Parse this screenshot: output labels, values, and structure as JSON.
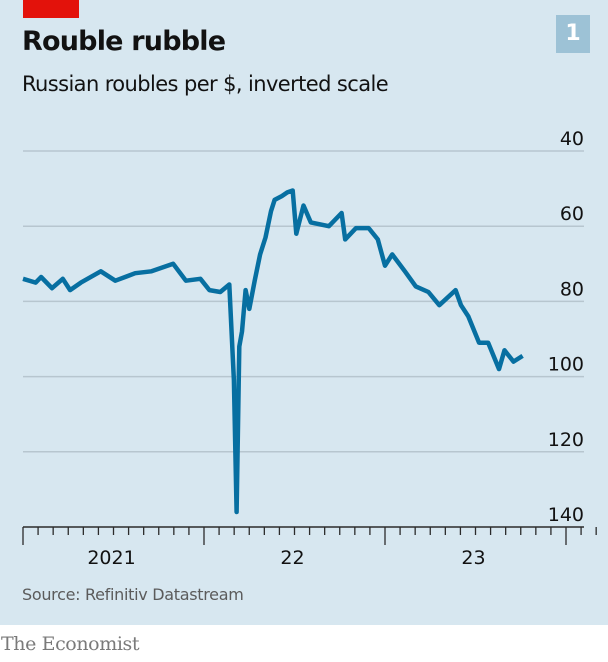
{
  "header": {
    "title": "Rouble rubble",
    "subtitle": "Russian roubles per $, inverted scale",
    "chart_number": "1"
  },
  "footer": {
    "source": "Source: Refinitiv Datastream",
    "brand": "The Economist"
  },
  "colors": {
    "background": "#d7e7f0",
    "line": "#076fa1",
    "gridline": "#b7c6cf",
    "red_tag": "#e3120b",
    "badge": "#9dc2d6"
  },
  "chart_data": {
    "type": "line",
    "title": "Rouble rubble",
    "subtitle": "Russian roubles per $, inverted scale",
    "xlabel": "",
    "ylabel": "Russian roubles per $",
    "y_inverted": true,
    "ylim": [
      40,
      140
    ],
    "yticks": [
      40,
      60,
      80,
      100,
      120,
      140
    ],
    "ytick_labels": [
      "40",
      "60",
      "80",
      "100",
      "120",
      "140"
    ],
    "xlim": [
      2021.0,
      2024.1
    ],
    "xtick_labels": [
      {
        "label": "2021",
        "year": 2021.5
      },
      {
        "label": "22",
        "year": 2022.5
      },
      {
        "label": "23",
        "year": 2023.5
      }
    ],
    "year_boundaries": [
      2021.0,
      2022.0,
      2023.0
    ],
    "minor_ticks": "monthly",
    "grid": true,
    "legend": "none",
    "series": [
      {
        "name": "Roubles per $",
        "x": [
          2021.0,
          2021.07,
          2021.1,
          2021.16,
          2021.22,
          2021.26,
          2021.32,
          2021.43,
          2021.51,
          2021.62,
          2021.71,
          2021.83,
          2021.9,
          2021.98,
          2022.03,
          2022.09,
          2022.14,
          2022.165,
          2022.18,
          2022.195,
          2022.21,
          2022.23,
          2022.25,
          2022.28,
          2022.31,
          2022.34,
          2022.37,
          2022.39,
          2022.43,
          2022.46,
          2022.49,
          2022.51,
          2022.55,
          2022.59,
          2022.69,
          2022.76,
          2022.78,
          2022.84,
          2022.91,
          2022.96,
          2023.0,
          2023.04,
          2023.11,
          2023.17,
          2023.24,
          2023.3,
          2023.39,
          2023.42,
          2023.46,
          2023.52,
          2023.57,
          2023.63,
          2023.66,
          2023.71,
          2023.76
        ],
        "values": [
          74,
          75,
          73.5,
          76.5,
          74,
          77,
          75,
          72,
          74.5,
          72.5,
          72,
          70,
          74.5,
          74,
          77,
          77.5,
          75.5,
          101,
          136,
          92,
          88,
          77,
          82,
          74.5,
          67.5,
          63,
          56,
          53,
          52,
          51,
          50.5,
          62,
          54.5,
          59,
          60,
          56.5,
          63.5,
          60.5,
          60.5,
          63.5,
          70.5,
          67.5,
          72,
          76,
          77.5,
          81,
          77,
          81,
          84,
          91,
          91,
          98,
          93,
          96,
          94.5
        ]
      }
    ]
  }
}
